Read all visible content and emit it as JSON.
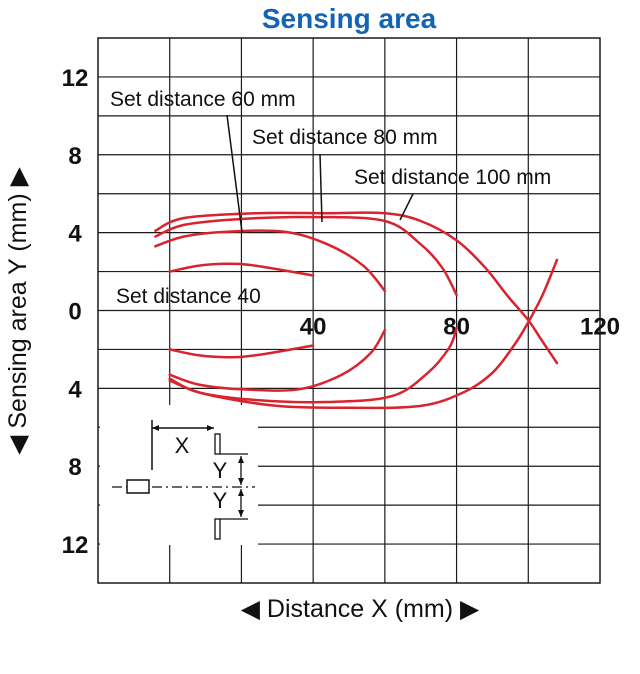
{
  "chart_data": {
    "type": "line",
    "title": "Sensing area",
    "xlabel": "◀ Distance X (mm) ▶",
    "ylabel": "◀ Sensing area Y (mm) ▶",
    "xlim": [
      -20,
      120
    ],
    "ylim": [
      -14,
      14
    ],
    "x_ticks": [
      40,
      80,
      120
    ],
    "y_ticks": [
      {
        "value": 12,
        "label": "12"
      },
      {
        "value": 8,
        "label": "8"
      },
      {
        "value": 4,
        "label": "4"
      },
      {
        "value": 0,
        "label": "0"
      },
      {
        "value": -4,
        "label": "4"
      },
      {
        "value": -8,
        "label": "8"
      },
      {
        "value": -12,
        "label": "12"
      }
    ],
    "grid": true,
    "colors": {
      "curve": "#d9232e",
      "grid": "#1a1a1a",
      "title": "#1464b4",
      "text": "#111111"
    },
    "series": [
      {
        "name": "Set distance 40",
        "upper": [
          [
            0,
            2
          ],
          [
            8,
            2.3
          ],
          [
            16,
            2.4
          ],
          [
            24,
            2.3
          ],
          [
            40,
            1.8
          ]
        ],
        "lower": [
          [
            0,
            -2
          ],
          [
            8,
            -2.3
          ],
          [
            16,
            -2.4
          ],
          [
            24,
            -2.3
          ],
          [
            40,
            -1.8
          ]
        ]
      },
      {
        "name": "Set distance 60 mm",
        "upper": [
          [
            -4,
            3.3
          ],
          [
            4,
            3.8
          ],
          [
            16,
            4.05
          ],
          [
            32,
            4.05
          ],
          [
            44,
            3.4
          ],
          [
            54,
            2.3
          ],
          [
            60,
            1
          ]
        ],
        "lower": [
          [
            0,
            -3.3
          ],
          [
            8,
            -3.8
          ],
          [
            20,
            -4.05
          ],
          [
            36,
            -4.05
          ],
          [
            48,
            -3.3
          ],
          [
            56,
            -2.2
          ],
          [
            60,
            -1
          ]
        ]
      },
      {
        "name": "Set distance 80 mm",
        "upper": [
          [
            -4,
            3.8
          ],
          [
            4,
            4.4
          ],
          [
            20,
            4.7
          ],
          [
            40,
            4.8
          ],
          [
            60,
            4.6
          ],
          [
            70,
            3.4
          ],
          [
            76,
            2.2
          ],
          [
            80,
            0.8
          ]
        ],
        "lower": [
          [
            0,
            -3.5
          ],
          [
            8,
            -4.2
          ],
          [
            24,
            -4.6
          ],
          [
            44,
            -4.7
          ],
          [
            62,
            -4.4
          ],
          [
            72,
            -3.2
          ],
          [
            78,
            -1.9
          ],
          [
            80,
            -0.9
          ]
        ]
      },
      {
        "name": "Set distance 100 mm",
        "upper": [
          [
            -4,
            4.1
          ],
          [
            4,
            4.75
          ],
          [
            24,
            5
          ],
          [
            44,
            5
          ],
          [
            60,
            5
          ],
          [
            70,
            4.6
          ],
          [
            80,
            3.6
          ],
          [
            88,
            2.2
          ],
          [
            94,
            0.8
          ],
          [
            100,
            -0.5
          ],
          [
            104,
            -1.6
          ],
          [
            108,
            -2.7
          ]
        ],
        "lower": [
          [
            0,
            -3.6
          ],
          [
            10,
            -4.3
          ],
          [
            30,
            -4.9
          ],
          [
            50,
            -5
          ],
          [
            70,
            -4.9
          ],
          [
            82,
            -4.2
          ],
          [
            90,
            -3.2
          ],
          [
            96,
            -1.8
          ],
          [
            100,
            -0.6
          ],
          [
            104,
            0.8
          ],
          [
            108,
            2.6
          ]
        ]
      }
    ],
    "labels": [
      "Set distance 60 mm",
      "Set distance 80 mm",
      "Set distance 100 mm",
      "Set distance 40"
    ]
  },
  "inset": {
    "x_label": "X",
    "y_label_upper": "Y",
    "y_label_lower": "Y"
  }
}
